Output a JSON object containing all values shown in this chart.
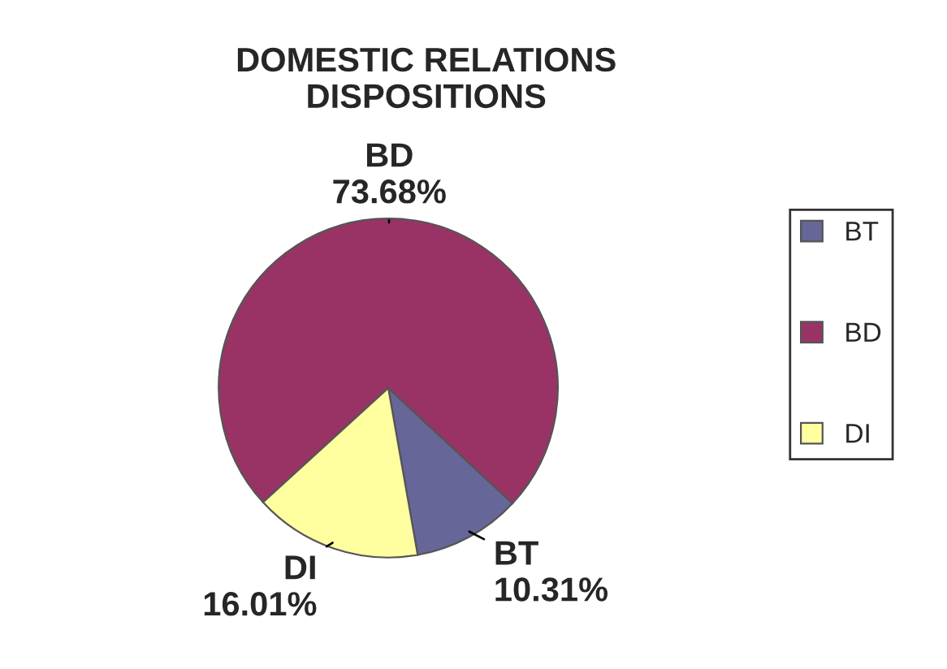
{
  "chart_data": {
    "type": "pie",
    "title": "DOMESTIC RELATIONS\nDISPOSITIONS",
    "categories": [
      "BT",
      "BD",
      "DI"
    ],
    "values": [
      10.31,
      73.68,
      16.01
    ],
    "value_labels": [
      "10.31%",
      "73.68%",
      "16.01%"
    ],
    "colors": [
      "#666699",
      "#993366",
      "#ffffa0"
    ],
    "legend": "right"
  }
}
